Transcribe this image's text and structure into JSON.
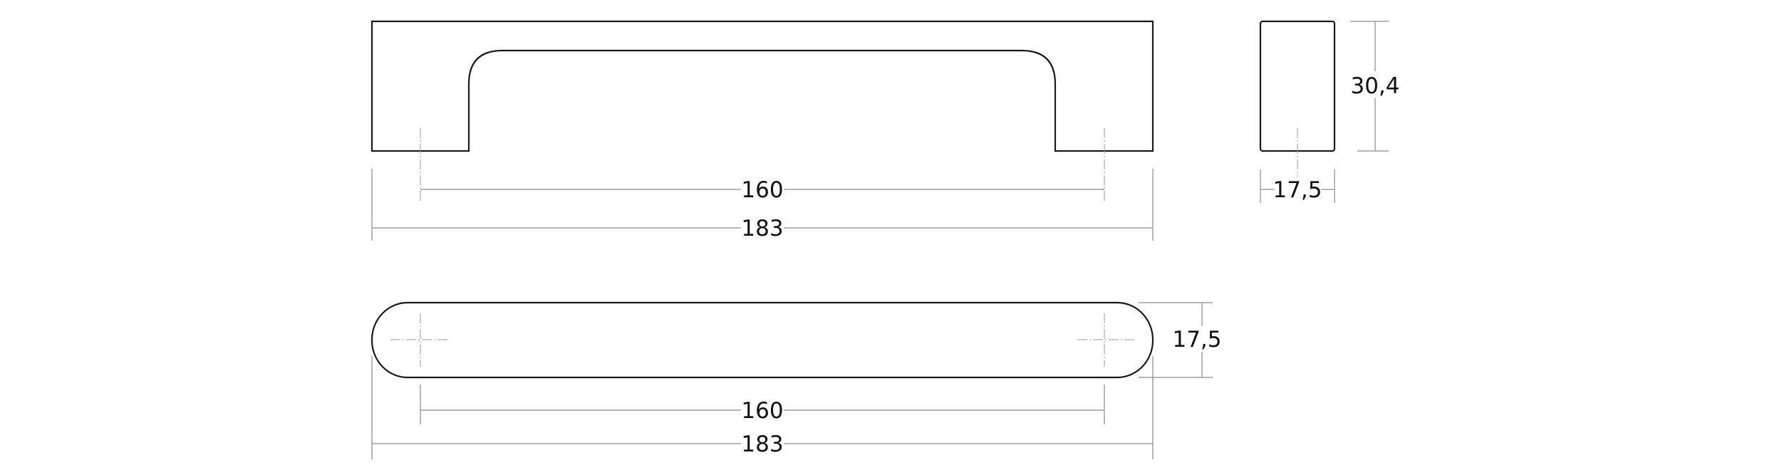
{
  "dimensions": {
    "front_hole_spacing": "160",
    "front_overall_length": "183",
    "side_height": "30,4",
    "side_width": "17,5",
    "top_width": "17,5",
    "top_hole_spacing": "160",
    "top_overall_length": "183"
  },
  "colors": {
    "outline": "#1a1a1a",
    "dimension_lines": "#8a8a8a"
  }
}
